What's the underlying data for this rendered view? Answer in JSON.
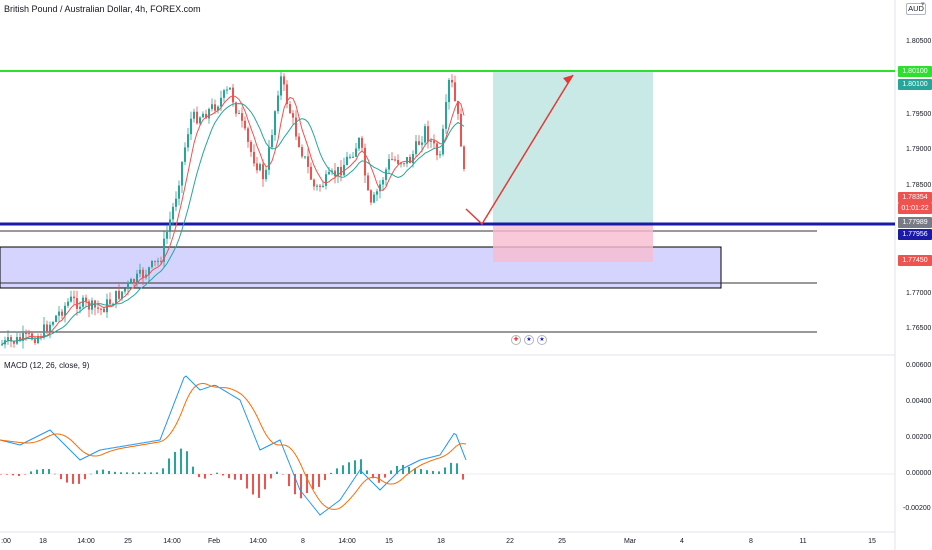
{
  "header": {
    "symbol_title": "British Pound / Australian Dollar, 4h, FOREX.com",
    "currency": "AUD",
    "currency_dropdown_icon": "chevron-down-icon"
  },
  "macd": {
    "title": "MACD (12, 26, close, 9)",
    "yticks": [
      "0.00600",
      "0.00400",
      "0.00200",
      "0.00000",
      "-0.00200"
    ]
  },
  "price_axis": {
    "ticks": [
      "1.80500",
      "1.79500",
      "1.79000",
      "1.78500",
      "1.77000",
      "1.76500"
    ]
  },
  "price_labels": {
    "target_green": "1.80100",
    "target_teal": "1.80100",
    "current": "1.78354",
    "countdown": "01:01:22",
    "gray": "1.77989",
    "blue_line": "1.77956",
    "stop": "1.77450"
  },
  "time_axis": {
    "ticks": [
      ":00",
      "18",
      "14:00",
      "25",
      "14:00",
      "Feb",
      "14:00",
      "8",
      "14:00",
      "15",
      "18",
      "22",
      "25",
      "Mar",
      "4",
      "8",
      "11",
      "15"
    ]
  },
  "colors": {
    "up": "#26a69a",
    "down": "#ef5350",
    "support_blue": "#1a1aa8",
    "resistance_green": "#2ee02e",
    "zone_fill": "#c5c5ff",
    "profit_fill": "#b2dfdb",
    "loss_fill": "#f8bbd0",
    "arrow": "#e53935",
    "macd_line": "#2196f3",
    "signal_line": "#ff6d00"
  },
  "events": [
    "flag-icon-uk",
    "flag-icon-au"
  ]
}
